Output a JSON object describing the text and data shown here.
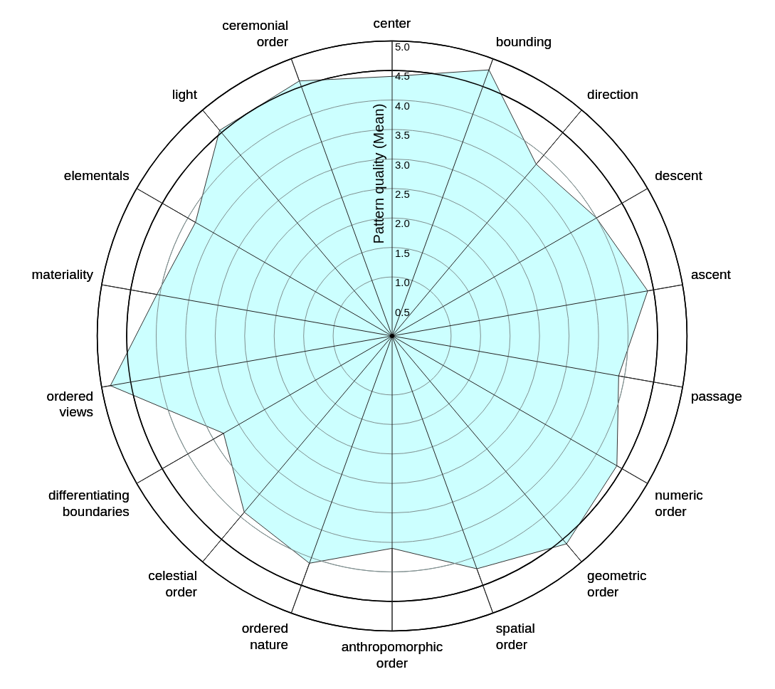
{
  "chart_data": {
    "type": "radar",
    "ylabel": "Pattern quality (Mean)",
    "categories": [
      "center",
      "bounding",
      "direction",
      "descent",
      "ascent",
      "passage",
      "numeric order",
      "geometric order",
      "spatial order",
      "anthropomorphic order",
      "ordered nature",
      "celestial order",
      "differentiating boundaries",
      "ordered views",
      "materiality",
      "elementals",
      "light",
      "ceremonial order"
    ],
    "series": [
      {
        "color": "#ccffff",
        "values": [
          4.4,
          4.8,
          3.8,
          4.0,
          4.4,
          3.9,
          4.4,
          4.6,
          4.2,
          3.6,
          4.1,
          3.9,
          3.3,
          4.85,
          4.05,
          3.85,
          4.55,
          4.6
        ]
      }
    ],
    "ylim": [
      0,
      5
    ],
    "yticks": [
      0.5,
      {
        "value": 1,
        "label": "1.0"
      },
      1.5,
      {
        "value": 2,
        "label": "2.0"
      },
      2.5,
      {
        "value": 3,
        "label": "3.0"
      },
      3.5,
      {
        "value": 4,
        "label": "4.0"
      },
      4.5,
      {
        "value": 5,
        "label": "5.0"
      }
    ],
    "grid": true,
    "legend": false
  }
}
